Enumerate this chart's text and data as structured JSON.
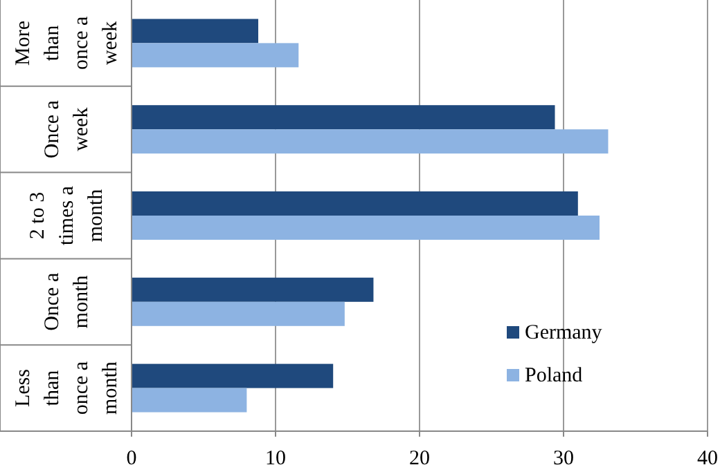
{
  "chart_data": {
    "type": "bar",
    "orientation": "horizontal",
    "categories": [
      "More than once a week",
      "Once a week",
      "2 to 3 times a month",
      "Once a month",
      "Less than once a month"
    ],
    "series": [
      {
        "name": "Germany",
        "color": "#1f497d",
        "values": [
          8.8,
          29.4,
          31.0,
          16.8,
          14.0
        ]
      },
      {
        "name": "Poland",
        "color": "#8db3e2",
        "values": [
          11.6,
          33.1,
          32.5,
          14.8,
          8.0
        ]
      }
    ],
    "xlim": [
      0,
      40
    ],
    "xticks": [
      0,
      10,
      20,
      30,
      40
    ],
    "grid": "x",
    "legend": "bottom right"
  }
}
